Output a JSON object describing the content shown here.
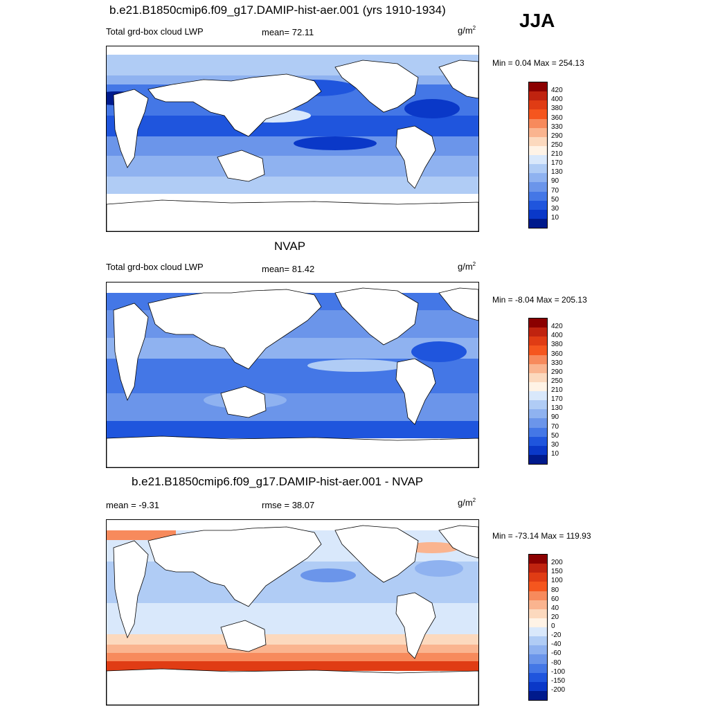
{
  "season": "JJA",
  "panels": [
    {
      "title": "b.e21.B1850cmip6.f09_g17.DAMIP-hist-aer.001 (yrs 1910-1934)",
      "left_label": "Total grd-box cloud LWP",
      "mid_label": "mean=  72.11",
      "units": "g/m",
      "units_exp": "2",
      "minmax": "Min =   0.04 Max = 254.13",
      "colorbar": {
        "labels": [
          "420",
          "400",
          "380",
          "360",
          "330",
          "290",
          "250",
          "210",
          "170",
          "130",
          "90",
          "70",
          "50",
          "30",
          "10"
        ],
        "colors": [
          "#8b0000",
          "#c0230f",
          "#e03c14",
          "#f5561e",
          "#f78a5c",
          "#fab48f",
          "#fcd9be",
          "#fff3e6",
          "#d9e8fb",
          "#b0ccf5",
          "#8fb2f0",
          "#6b95ea",
          "#4477e6",
          "#1f55dd",
          "#0a38c8",
          "#001a8c"
        ]
      }
    },
    {
      "title": "NVAP",
      "left_label": "Total grd-box cloud LWP",
      "mid_label": "mean=  81.42",
      "units": "g/m",
      "units_exp": "2",
      "minmax": "Min =  -8.04 Max = 205.13",
      "colorbar": {
        "labels": [
          "420",
          "400",
          "380",
          "360",
          "330",
          "290",
          "250",
          "210",
          "170",
          "130",
          "90",
          "70",
          "50",
          "30",
          "10"
        ],
        "colors": [
          "#8b0000",
          "#c0230f",
          "#e03c14",
          "#f5561e",
          "#f78a5c",
          "#fab48f",
          "#fcd9be",
          "#fff3e6",
          "#d9e8fb",
          "#b0ccf5",
          "#8fb2f0",
          "#6b95ea",
          "#4477e6",
          "#1f55dd",
          "#0a38c8",
          "#001a8c"
        ]
      }
    },
    {
      "title": "b.e21.B1850cmip6.f09_g17.DAMIP-hist-aer.001 - NVAP",
      "left_label": "mean =  -9.31",
      "mid_label": "rmse =  38.07",
      "units": "g/m",
      "units_exp": "2",
      "minmax": "Min = -73.14 Max = 119.93",
      "colorbar": {
        "labels": [
          "200",
          "150",
          "100",
          "80",
          "60",
          "40",
          "20",
          "0",
          "-20",
          "-40",
          "-60",
          "-80",
          "-100",
          "-150",
          "-200"
        ],
        "colors": [
          "#8b0000",
          "#c0230f",
          "#e03c14",
          "#f5561e",
          "#f78a5c",
          "#fab48f",
          "#fcd9be",
          "#fff3e6",
          "#d9e8fb",
          "#b0ccf5",
          "#8fb2f0",
          "#6b95ea",
          "#4477e6",
          "#1f55dd",
          "#0a38c8",
          "#001a8c"
        ]
      }
    }
  ]
}
